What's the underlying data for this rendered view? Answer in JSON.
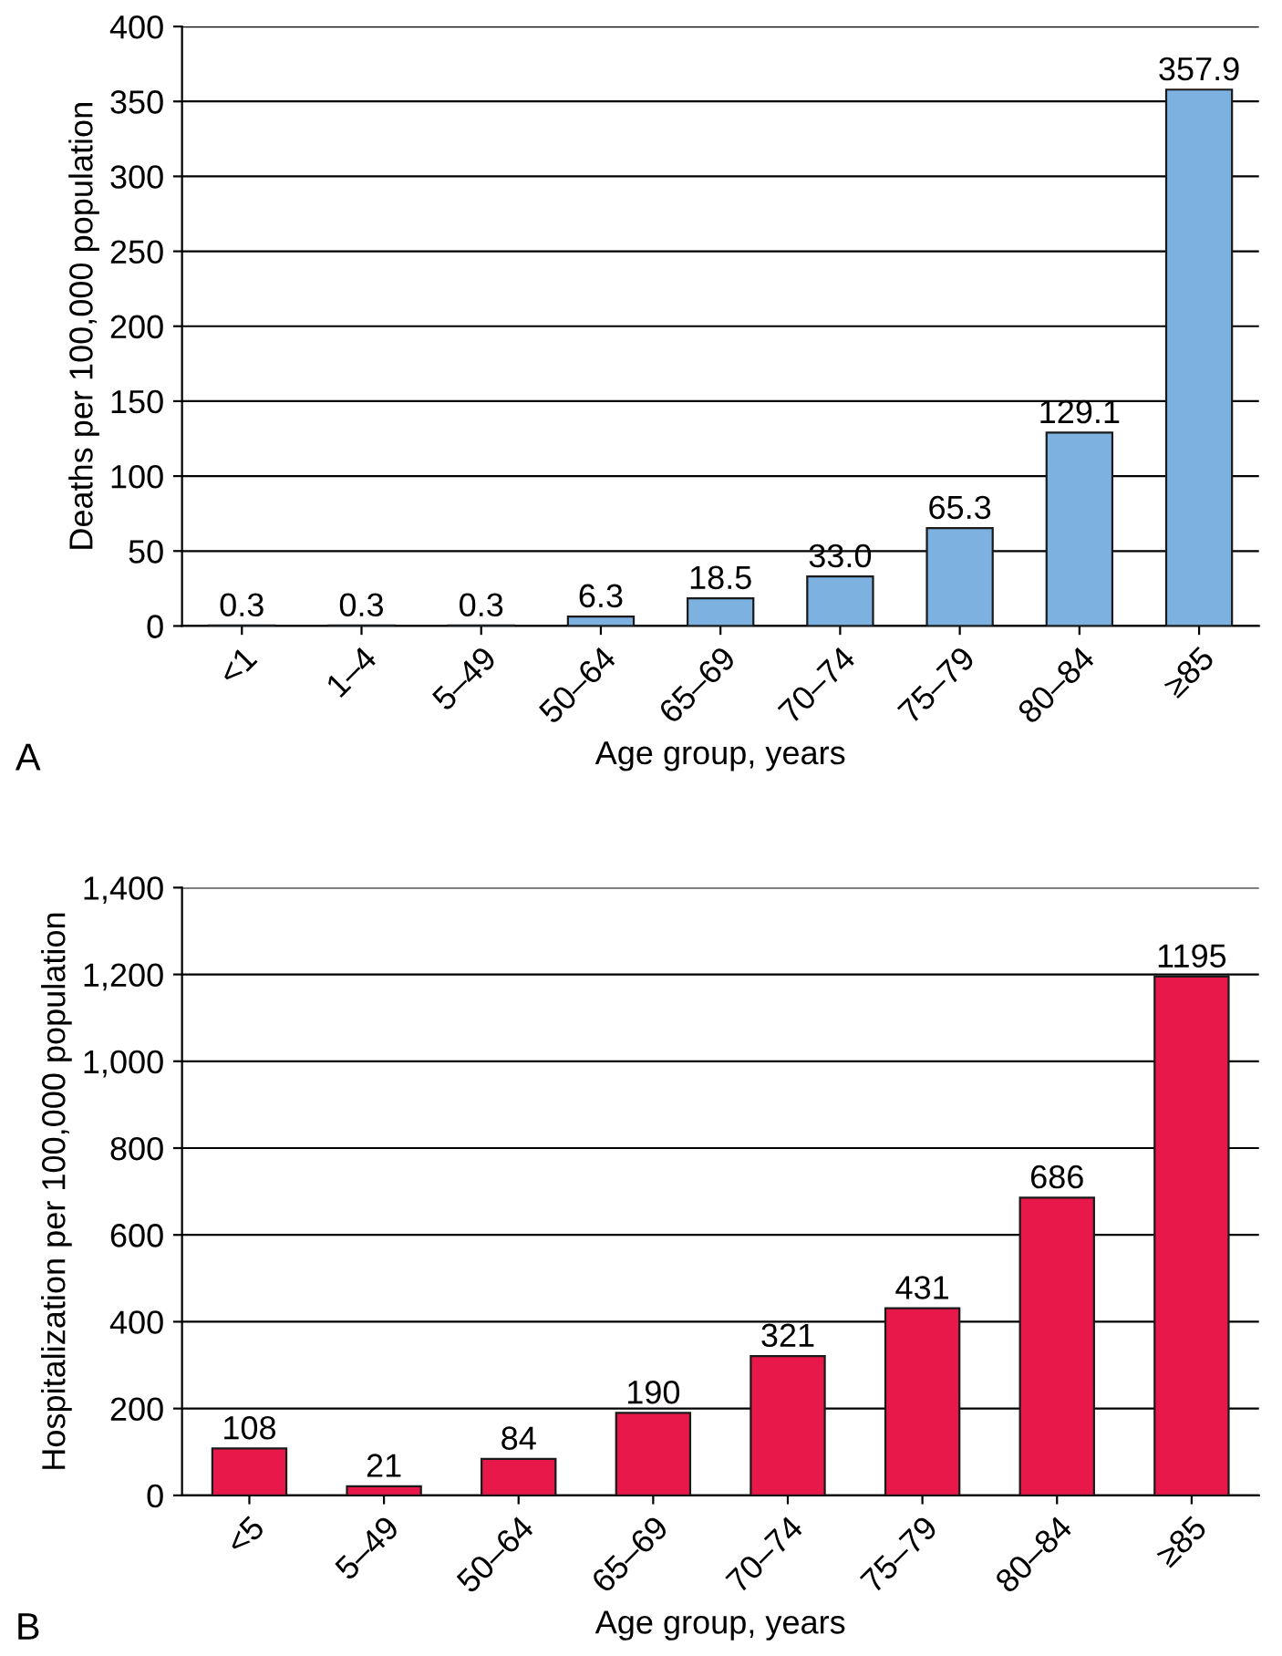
{
  "chart_data": [
    {
      "type": "bar",
      "categories": [
        "<1",
        "1–4",
        "5–49",
        "50–64",
        "65–69",
        "70–74",
        "75–79",
        "80–84",
        "≥85"
      ],
      "values": [
        0.3,
        0.3,
        0.3,
        6.3,
        18.5,
        33.0,
        65.3,
        129.1,
        357.9
      ],
      "value_labels": [
        "0.3",
        "0.3",
        "0.3",
        "6.3",
        "18.5",
        "33.0",
        "65.3",
        "129.1",
        "357.9"
      ],
      "color": "#7cb1e0",
      "xlabel": "Age group, years",
      "ylabel": "Deaths per 100,000 population",
      "ylim": [
        0,
        400
      ],
      "yticks": [
        0,
        50,
        100,
        150,
        200,
        250,
        300,
        350,
        400
      ],
      "grid": "y",
      "annotations": [
        "A"
      ]
    },
    {
      "type": "bar",
      "categories": [
        "<5",
        "5–49",
        "50–64",
        "65–69",
        "70–74",
        "75–79",
        "80–84",
        "≥85"
      ],
      "values": [
        108,
        21,
        84,
        190,
        321,
        431,
        686,
        1195
      ],
      "data_labels": true,
      "color": "#e8194a",
      "xlabel": "Age group, years",
      "ylabel": "Hospitalization per 100,000 population",
      "ylim": [
        0,
        1400
      ],
      "yticks": [
        0,
        200,
        400,
        600,
        800,
        {
          "value": 1000,
          "label": "1,000"
        },
        {
          "value": 1200,
          "label": "1,200"
        },
        {
          "value": 1400,
          "label": "1,400"
        }
      ],
      "grid": "y",
      "annotations": [
        "B"
      ]
    }
  ]
}
